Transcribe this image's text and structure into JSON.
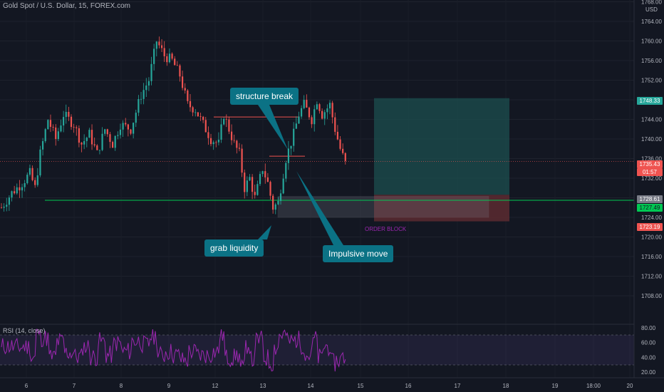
{
  "header": {
    "title": "Gold Spot / U.S. Dollar, 15, FOREX.com"
  },
  "currency": "USD",
  "rsi": {
    "label": "RSI (14, close)",
    "ticks": [
      "80.00",
      "60.00",
      "40.00",
      "20.00"
    ]
  },
  "annotations": {
    "structure_break": "structure break",
    "grab_liquidity": "grab liquidity",
    "impulsive_move": "Impulsive move",
    "order_block": "ORDER BLOCK"
  },
  "price_tags": {
    "target": "1748.33",
    "current": "1735.43",
    "countdown": "01:57",
    "p1": "1728.61",
    "p2": "1727.49",
    "stop": "1723.19"
  },
  "colors": {
    "background": "#131722",
    "up_candle": "#26a69a",
    "down_candle": "#ef5350",
    "callout": "#0b7285",
    "rsi_line": "#9c27b0",
    "support_line": "#00c853",
    "profit_zone": "#1c4f4f",
    "loss_zone": "#5c2a30"
  },
  "chart_data": {
    "type": "candlestick",
    "symbol": "XAUUSD",
    "timeframe": "15",
    "y_ticks": [
      "1768.00",
      "1764.00",
      "1760.00",
      "1756.00",
      "1752.00",
      "1748.00",
      "1744.00",
      "1740.00",
      "1736.00",
      "1732.00",
      "1728.00",
      "1724.00",
      "1720.00",
      "1716.00",
      "1712.00",
      "1708.00"
    ],
    "ylim": [
      1705,
      1768
    ],
    "x_ticks": [
      "6",
      "7",
      "8",
      "9",
      "12",
      "13",
      "14",
      "15",
      "16",
      "17",
      "18",
      "19",
      "20",
      "18:00"
    ],
    "price_path": [
      [
        0,
        1726
      ],
      [
        4,
        1729
      ],
      [
        8,
        1731
      ],
      [
        11,
        1733
      ],
      [
        13,
        1730
      ],
      [
        15,
        1737
      ],
      [
        18,
        1744
      ],
      [
        21,
        1740
      ],
      [
        24,
        1745
      ],
      [
        28,
        1743
      ],
      [
        31,
        1739
      ],
      [
        34,
        1741
      ],
      [
        37,
        1737
      ],
      [
        40,
        1742
      ],
      [
        43,
        1739
      ],
      [
        46,
        1743
      ],
      [
        50,
        1742
      ],
      [
        54,
        1749
      ],
      [
        57,
        1752
      ],
      [
        60,
        1760
      ],
      [
        63,
        1757
      ],
      [
        66,
        1756
      ],
      [
        69,
        1753
      ],
      [
        72,
        1747
      ],
      [
        75,
        1746
      ],
      [
        78,
        1743
      ],
      [
        81,
        1740
      ],
      [
        84,
        1739
      ],
      [
        86,
        1745
      ],
      [
        88,
        1742
      ],
      [
        90,
        1739
      ],
      [
        92,
        1737
      ],
      [
        94,
        1730
      ],
      [
        96,
        1732
      ],
      [
        98,
        1728
      ],
      [
        101,
        1734
      ],
      [
        103,
        1731
      ],
      [
        105,
        1726
      ],
      [
        107,
        1727
      ],
      [
        110,
        1736
      ],
      [
        113,
        1741
      ],
      [
        115,
        1745
      ],
      [
        117,
        1747
      ],
      [
        120,
        1744
      ],
      [
        122,
        1748
      ],
      [
        124,
        1745
      ],
      [
        127,
        1747
      ],
      [
        129,
        1742
      ],
      [
        131,
        1738
      ],
      [
        133,
        1735
      ]
    ],
    "trade": {
      "entry": 1728.61,
      "stop": 1723.19,
      "target": 1748.33,
      "support_level": 1727.49,
      "structure_break_level": 1744.5,
      "bos_level": 1736.5,
      "order_block": [
        1724.0,
        1728.3
      ]
    },
    "rsi": {
      "ylim": [
        20,
        80
      ],
      "bands": [
        70,
        30
      ]
    }
  }
}
